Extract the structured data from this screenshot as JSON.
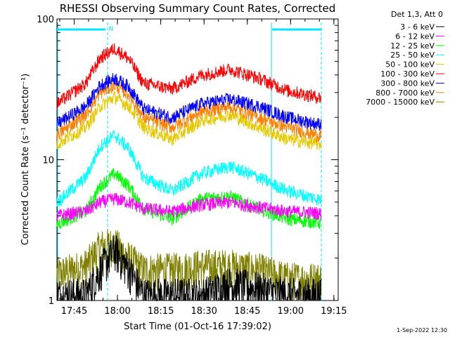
{
  "chart_data": {
    "type": "line",
    "title": "RHESSI Observing Summary Count Rates, Corrected",
    "xlabel": "Start Time (01-Oct-16 17:39:02)",
    "ylabel": "Corrected Count Rate (s⁻¹ detector⁻¹)",
    "y_scale": "log",
    "ylim": [
      1,
      100
    ],
    "xlim": [
      "17:39:02",
      "19:16:30"
    ],
    "y_tick_labels": [
      "1",
      "10",
      "100"
    ],
    "x_tick_labels": [
      "17:45",
      "18:00",
      "18:15",
      "18:30",
      "18:45",
      "19:00",
      "19:15"
    ],
    "x_tick_minutes": [
      5.97,
      20.97,
      35.97,
      50.97,
      65.97,
      80.97,
      95.97
    ],
    "legend_position": "top-right, outside plot",
    "legend_header": "Det 1,3, Att 0",
    "annotations": {
      "night_marker": "N",
      "footer_date": "1-Sep-2022 12:30"
    },
    "series": [
      {
        "name": "3 - 6 keV",
        "color": "#000000",
        "band": "black",
        "time_min": [
          0,
          10,
          15,
          20,
          25,
          30,
          40,
          50,
          60,
          70,
          80,
          90,
          95
        ],
        "values": [
          1,
          1,
          1.5,
          2.1,
          1.5,
          1,
          1,
          1,
          1.2,
          1.1,
          1,
          1,
          1
        ]
      },
      {
        "name": "6 - 12 keV",
        "color": "#ff00ff",
        "time_min": [
          0,
          10,
          15,
          20,
          25,
          30,
          40,
          50,
          60,
          70,
          80,
          90,
          95
        ],
        "values": [
          4.0,
          4.3,
          5.0,
          5.3,
          5.0,
          4.5,
          4.3,
          4.8,
          5.0,
          4.6,
          4.3,
          4.2,
          4.0
        ]
      },
      {
        "name": "12 - 25 keV",
        "color": "#00ff00",
        "time_min": [
          0,
          10,
          15,
          20,
          25,
          30,
          40,
          50,
          60,
          70,
          80,
          90,
          95
        ],
        "values": [
          3.5,
          4.3,
          6.5,
          8.0,
          6.5,
          4.5,
          3.8,
          5.3,
          5.5,
          4.5,
          3.8,
          3.6,
          3.5
        ]
      },
      {
        "name": "25 - 50 keV",
        "color": "#00ffff",
        "time_min": [
          0,
          10,
          15,
          20,
          25,
          30,
          40,
          50,
          60,
          70,
          80,
          90,
          95
        ],
        "values": [
          5.0,
          7.5,
          12.5,
          15.0,
          12.0,
          7.5,
          6.0,
          8.0,
          9.0,
          7.5,
          6.0,
          5.3,
          5.0
        ]
      },
      {
        "name": "50 - 100 keV",
        "color": "#e6c800",
        "time_min": [
          0,
          10,
          15,
          20,
          25,
          30,
          40,
          50,
          60,
          70,
          80,
          90,
          95
        ],
        "values": [
          13,
          17,
          24,
          28,
          24,
          17,
          14,
          19,
          21,
          17,
          14,
          13,
          13
        ]
      },
      {
        "name": "100 - 300 keV",
        "color": "#ff0000",
        "time_min": [
          0,
          10,
          15,
          20,
          25,
          30,
          40,
          50,
          60,
          70,
          80,
          90,
          95
        ],
        "values": [
          25,
          35,
          53,
          62,
          52,
          35,
          32,
          40,
          44,
          38,
          31,
          28,
          27
        ]
      },
      {
        "name": "300 - 800 keV",
        "color": "#0000ff",
        "time_min": [
          0,
          10,
          15,
          20,
          25,
          30,
          40,
          50,
          60,
          70,
          80,
          90,
          95
        ],
        "values": [
          18,
          24,
          34,
          38,
          33,
          23,
          20,
          25,
          27,
          24,
          20,
          18,
          18
        ]
      },
      {
        "name": "800 - 7000 keV",
        "color": "#ff8000",
        "time_min": [
          0,
          10,
          15,
          20,
          25,
          30,
          40,
          50,
          60,
          70,
          80,
          90,
          95
        ],
        "values": [
          15,
          21,
          30,
          34,
          29,
          20,
          17,
          22,
          24,
          20,
          17,
          15,
          15
        ]
      },
      {
        "name": "7000 - 15000 keV",
        "color": "#808000",
        "band": "olive",
        "time_min": [
          0,
          10,
          15,
          20,
          25,
          30,
          40,
          50,
          60,
          70,
          80,
          90,
          95
        ],
        "values": [
          1.4,
          1.6,
          2.2,
          2.3,
          1.8,
          1.5,
          1.5,
          1.6,
          1.6,
          1.5,
          1.3,
          1.3,
          1.3
        ]
      }
    ]
  }
}
